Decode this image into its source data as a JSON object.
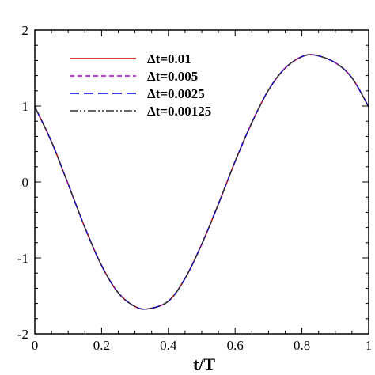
{
  "chart_data": {
    "type": "line",
    "xlabel": "t/T",
    "ylabel": "",
    "xlim": [
      0,
      1
    ],
    "ylim": [
      -2,
      2
    ],
    "x_ticks": [
      0,
      0.2,
      0.4,
      0.6,
      0.8,
      1
    ],
    "x_tick_labels": [
      "0",
      "0.2",
      "0.4",
      "0.6",
      "0.8",
      "1"
    ],
    "y_ticks": [
      -2,
      -1,
      0,
      1,
      2
    ],
    "y_tick_labels": [
      "-2",
      "-1",
      "0",
      "1",
      "2"
    ],
    "grid": false,
    "legend_position": "top-left",
    "x": [
      0,
      0.05,
      0.1,
      0.15,
      0.2,
      0.25,
      0.3,
      0.34,
      0.4,
      0.45,
      0.5,
      0.55,
      0.6,
      0.65,
      0.7,
      0.75,
      0.8,
      0.84,
      0.9,
      0.95,
      1.0
    ],
    "series": [
      {
        "name": "Δt=0.01",
        "color": "#cc0000",
        "dash": "solid",
        "values": [
          0.99,
          0.53,
          -0.03,
          -0.6,
          -1.1,
          -1.46,
          -1.64,
          -1.67,
          -1.57,
          -1.27,
          -0.82,
          -0.29,
          0.27,
          0.78,
          1.21,
          1.5,
          1.65,
          1.67,
          1.57,
          1.37,
          0.99
        ]
      },
      {
        "name": "Δt=0.005",
        "color": "#9900cc",
        "dash": "6,4",
        "values": [
          0.99,
          0.53,
          -0.03,
          -0.6,
          -1.1,
          -1.46,
          -1.64,
          -1.67,
          -1.57,
          -1.27,
          -0.82,
          -0.29,
          0.27,
          0.78,
          1.21,
          1.5,
          1.65,
          1.67,
          1.57,
          1.37,
          0.99
        ]
      },
      {
        "name": "Δt=0.0025",
        "color": "#0000dd",
        "dash": "12,6",
        "values": [
          0.99,
          0.53,
          -0.03,
          -0.6,
          -1.1,
          -1.46,
          -1.64,
          -1.67,
          -1.57,
          -1.27,
          -0.82,
          -0.29,
          0.27,
          0.78,
          1.21,
          1.5,
          1.65,
          1.67,
          1.57,
          1.37,
          0.99
        ]
      },
      {
        "name": "Δt=0.00125",
        "color": "#333333",
        "dash": "10,3,2,3,2,3",
        "values": [
          0.99,
          0.53,
          -0.03,
          -0.6,
          -1.1,
          -1.46,
          -1.64,
          -1.67,
          -1.57,
          -1.27,
          -0.82,
          -0.29,
          0.27,
          0.78,
          1.21,
          1.5,
          1.65,
          1.67,
          1.57,
          1.37,
          0.99
        ]
      }
    ]
  }
}
